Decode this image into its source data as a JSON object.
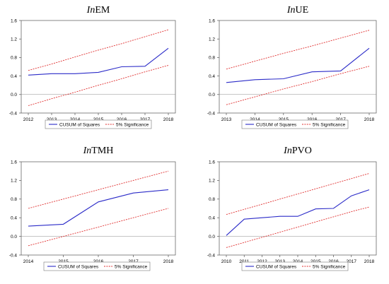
{
  "legend": {
    "cusum": "CUSUM of Squares",
    "significance": "5% Significance"
  },
  "colors": {
    "cusum": "#2b2bc8",
    "significance": "#e03030",
    "zero_line": "#888888"
  },
  "chart_data": [
    {
      "type": "line",
      "title": {
        "prefix": "In",
        "main": "EM"
      },
      "yticks": [
        "-0.4",
        "0.0",
        "0.4",
        "0.8",
        "1.2",
        "1.6"
      ],
      "ylim": [
        -0.4,
        1.6
      ],
      "xlim": [
        2012,
        2018
      ],
      "xticks": [
        "2012",
        "2013",
        "2014",
        "2015",
        "2016",
        "2017",
        "2018"
      ],
      "x": [
        2012,
        2013,
        2014,
        2015,
        2016,
        2017,
        2018
      ],
      "series": [
        {
          "key": "cusum",
          "values": [
            0.42,
            0.45,
            0.45,
            0.48,
            0.6,
            0.61,
            1.0
          ]
        },
        {
          "key": "upper",
          "values": [
            0.52,
            0.66,
            0.81,
            0.96,
            1.1,
            1.25,
            1.4
          ]
        },
        {
          "key": "lower",
          "values": [
            -0.24,
            -0.09,
            0.05,
            0.2,
            0.34,
            0.49,
            0.63
          ]
        }
      ]
    },
    {
      "type": "line",
      "title": {
        "prefix": "In",
        "main": "UE"
      },
      "yticks": [
        "-0.4",
        "0.0",
        "0.4",
        "0.8",
        "1.2",
        "1.6"
      ],
      "ylim": [
        -0.4,
        1.6
      ],
      "xlim": [
        2013,
        2018
      ],
      "xticks": [
        "2013",
        "2014",
        "2015",
        "2016",
        "2017",
        "2018"
      ],
      "x": [
        2013,
        2014,
        2015,
        2016,
        2017,
        2018
      ],
      "series": [
        {
          "key": "cusum",
          "values": [
            0.26,
            0.32,
            0.34,
            0.49,
            0.51,
            1.0
          ]
        },
        {
          "key": "upper",
          "values": [
            0.55,
            0.72,
            0.89,
            1.05,
            1.22,
            1.39
          ]
        },
        {
          "key": "lower",
          "values": [
            -0.22,
            -0.05,
            0.12,
            0.28,
            0.45,
            0.61
          ]
        }
      ]
    },
    {
      "type": "line",
      "title": {
        "prefix": "In",
        "main": "TMH"
      },
      "yticks": [
        "-0.4",
        "0.0",
        "0.4",
        "0.8",
        "1.2",
        "1.6"
      ],
      "ylim": [
        -0.4,
        1.6
      ],
      "xlim": [
        2014,
        2018
      ],
      "xticks": [
        "2014",
        "2015",
        "2016",
        "2017",
        "2018"
      ],
      "x": [
        2014,
        2015,
        2016,
        2017,
        2018
      ],
      "series": [
        {
          "key": "cusum",
          "values": [
            0.22,
            0.26,
            0.74,
            0.93,
            1.0
          ]
        },
        {
          "key": "upper",
          "values": [
            0.6,
            0.8,
            1.0,
            1.2,
            1.4
          ]
        },
        {
          "key": "lower",
          "values": [
            -0.2,
            0.0,
            0.2,
            0.4,
            0.6
          ]
        }
      ]
    },
    {
      "type": "line",
      "title": {
        "prefix": "In",
        "main": "PVO"
      },
      "yticks": [
        "-0.4",
        "0.0",
        "0.4",
        "0.8",
        "1.2",
        "1.6"
      ],
      "ylim": [
        -0.4,
        1.6
      ],
      "xlim": [
        2010,
        2018
      ],
      "xticks": [
        "2010",
        "2011",
        "2012",
        "2013",
        "2014",
        "2015",
        "2016",
        "2017",
        "2018"
      ],
      "x": [
        2010,
        2011,
        2012,
        2013,
        2014,
        2015,
        2016,
        2017,
        2018
      ],
      "series": [
        {
          "key": "cusum",
          "values": [
            0.02,
            0.37,
            0.4,
            0.43,
            0.43,
            0.59,
            0.6,
            0.87,
            1.0
          ]
        },
        {
          "key": "upper",
          "values": [
            0.47,
            0.58,
            0.69,
            0.8,
            0.91,
            1.02,
            1.13,
            1.24,
            1.35
          ]
        },
        {
          "key": "lower",
          "values": [
            -0.24,
            -0.13,
            -0.02,
            0.09,
            0.2,
            0.31,
            0.42,
            0.53,
            0.63
          ]
        }
      ]
    }
  ]
}
